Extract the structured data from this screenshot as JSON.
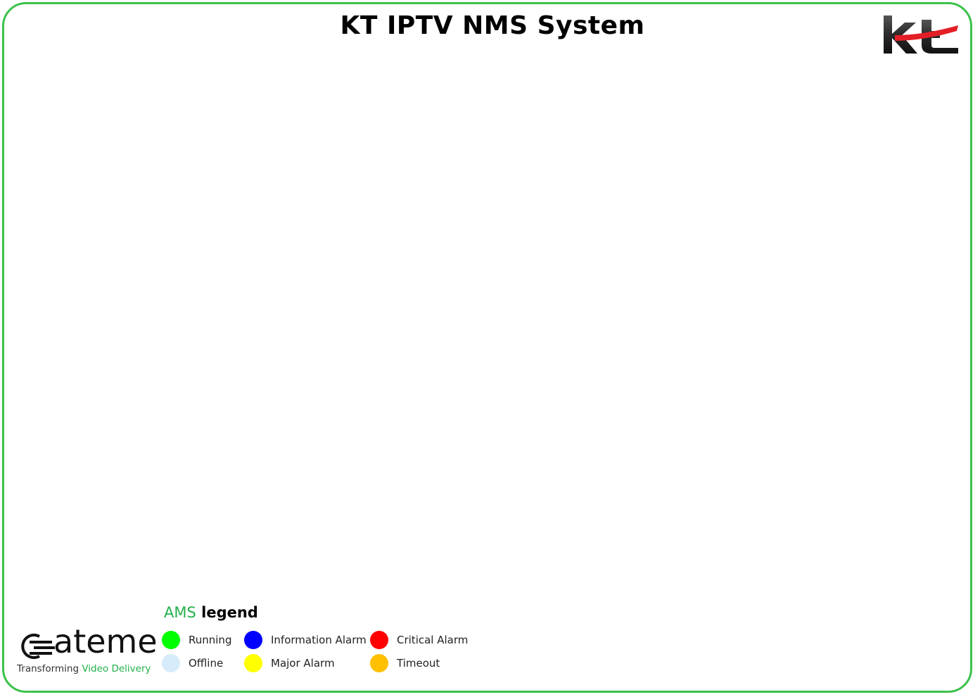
{
  "header": {
    "title": "KT IPTV NMS System",
    "logo_text": "kt"
  },
  "colors": {
    "frame_border": "#3cc24a",
    "accent_green": "#21b14b",
    "kt_red": "#e41e26"
  },
  "legend": {
    "title_accent": "AMS",
    "title_rest": " legend",
    "items": [
      {
        "label": "Running",
        "color": "#00ff00"
      },
      {
        "label": "Offline",
        "color": "#d6ecfa"
      },
      {
        "label": "Information Alarm",
        "color": "#0000ff"
      },
      {
        "label": "Major Alarm",
        "color": "#ffff00"
      },
      {
        "label": "Critical Alarm",
        "color": "#ff0000"
      },
      {
        "label": "Timeout",
        "color": "#ffc000"
      }
    ]
  },
  "footer": {
    "brand_word": "ateme",
    "tagline_prefix": "Transforming ",
    "tagline_accent": "Video Delivery"
  }
}
